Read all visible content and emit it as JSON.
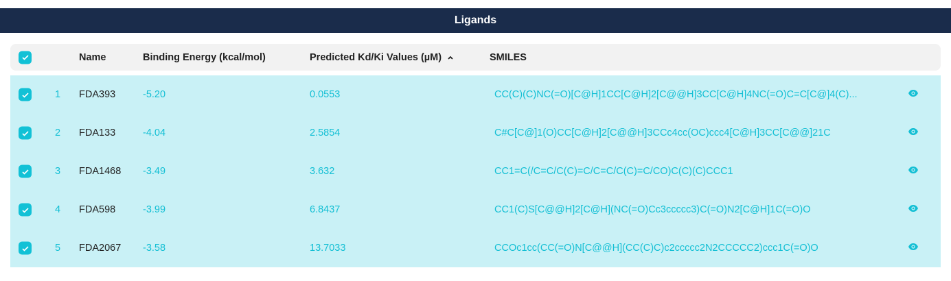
{
  "title": "Ligands",
  "columns": {
    "name": "Name",
    "energy": "Binding Energy (kcal/mol)",
    "kd": "Predicted Kd/Ki Values (µM)",
    "smiles": "SMILES",
    "sort_icon": "chevron-up-icon"
  },
  "colors": {
    "header": "#1a2c4b",
    "row_selected": "#c9f1f6",
    "accent": "#13bfd4"
  },
  "rows": [
    {
      "index": "1",
      "name": "FDA393",
      "energy": "-5.20",
      "kd": "0.0553",
      "smiles": "CC(C)(C)NC(=O)[C@H]1CC[C@H]2[C@@H]3CC[C@H]4NC(=O)C=C[C@]4(C)...",
      "selected": true
    },
    {
      "index": "2",
      "name": "FDA133",
      "energy": "-4.04",
      "kd": "2.5854",
      "smiles": "C#C[C@]1(O)CC[C@H]2[C@@H]3CCc4cc(OC)ccc4[C@H]3CC[C@@]21C",
      "selected": true
    },
    {
      "index": "3",
      "name": "FDA1468",
      "energy": "-3.49",
      "kd": "3.632",
      "smiles": "CC1=C(/C=C/C(C)=C/C=C/C(C)=C/CO)C(C)(C)CCC1",
      "selected": true
    },
    {
      "index": "4",
      "name": "FDA598",
      "energy": "-3.99",
      "kd": "6.8437",
      "smiles": "CC1(C)S[C@@H]2[C@H](NC(=O)Cc3ccccc3)C(=O)N2[C@H]1C(=O)O",
      "selected": true
    },
    {
      "index": "5",
      "name": "FDA2067",
      "energy": "-3.58",
      "kd": "13.7033",
      "smiles": "CCOc1cc(CC(=O)N[C@@H](CC(C)C)c2ccccc2N2CCCCC2)ccc1C(=O)O",
      "selected": true
    }
  ]
}
